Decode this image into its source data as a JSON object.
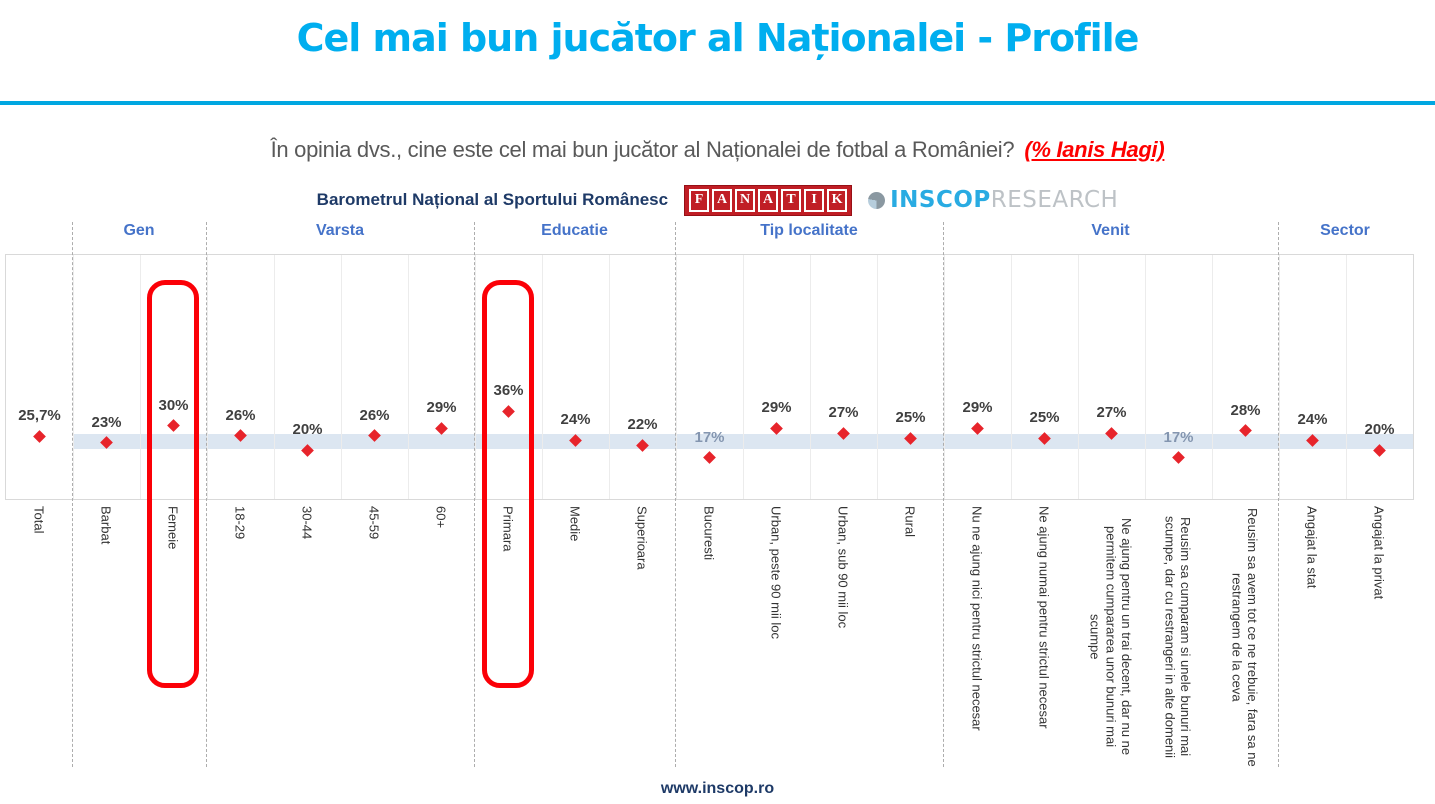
{
  "page": {
    "title": "Cel mai bun jucător al Naționalei - Profile",
    "question": "În opinia dvs., cine este cel mai bun jucător al Naționalei de fotbal a României?",
    "question_highlight": "(% Ianis Hagi)",
    "footer": "www.inscop.ro"
  },
  "brand": {
    "barometer": "Barometrul Național al Sportului Românesc",
    "fanatik": "FANATIK",
    "inscop_name": "INSCOP",
    "inscop_suffix": "RESEARCH"
  },
  "colors": {
    "title_cyan": "#00AEEF",
    "rule_blue": "#00A7E1",
    "highlight_red": "#FE0000",
    "marker_red": "#E7242B",
    "group_header_blue": "#4573C9",
    "reference_band": "#DCE6F1",
    "navy": "#1E3A67",
    "value_label": "#404040",
    "muted_value_label": "#8496B0"
  },
  "chart_data": {
    "type": "scatter",
    "unit": "%",
    "ylim": [
      0,
      100
    ],
    "grid": "column-separators",
    "reference_band": {
      "from": 20.5,
      "to": 26.5,
      "note": "light blue band at total level, starts after Total column"
    },
    "highlighted_categories": [
      "Femeie",
      "Primara"
    ],
    "groups": [
      {
        "label": "",
        "items": [
          {
            "label": "Total",
            "value": 25.7,
            "value_label": "25,7%",
            "muted": false,
            "highlighted": false
          }
        ]
      },
      {
        "label": "Gen",
        "items": [
          {
            "label": "Barbat",
            "value": 23,
            "value_label": "23%",
            "muted": false,
            "highlighted": false
          },
          {
            "label": "Femeie",
            "value": 30,
            "value_label": "30%",
            "muted": false,
            "highlighted": true
          }
        ]
      },
      {
        "label": "Varsta",
        "items": [
          {
            "label": "18-29",
            "value": 26,
            "value_label": "26%",
            "muted": false,
            "highlighted": false
          },
          {
            "label": "30-44",
            "value": 20,
            "value_label": "20%",
            "muted": false,
            "highlighted": false
          },
          {
            "label": "45-59",
            "value": 26,
            "value_label": "26%",
            "muted": false,
            "highlighted": false
          },
          {
            "label": "60+",
            "value": 29,
            "value_label": "29%",
            "muted": false,
            "highlighted": false
          }
        ]
      },
      {
        "label": "Educatie",
        "items": [
          {
            "label": "Primara",
            "value": 36,
            "value_label": "36%",
            "muted": false,
            "highlighted": true
          },
          {
            "label": "Medie",
            "value": 24,
            "value_label": "24%",
            "muted": false,
            "highlighted": false
          },
          {
            "label": "Superioara",
            "value": 22,
            "value_label": "22%",
            "muted": false,
            "highlighted": false
          }
        ]
      },
      {
        "label": "Tip localitate",
        "items": [
          {
            "label": "Bucuresti",
            "value": 17,
            "value_label": "17%",
            "muted": true,
            "highlighted": false
          },
          {
            "label": "Urban, peste 90 mii loc",
            "value": 29,
            "value_label": "29%",
            "muted": false,
            "highlighted": false
          },
          {
            "label": "Urban, sub 90 mii loc",
            "value": 27,
            "value_label": "27%",
            "muted": false,
            "highlighted": false
          },
          {
            "label": "Rural",
            "value": 25,
            "value_label": "25%",
            "muted": false,
            "highlighted": false
          }
        ]
      },
      {
        "label": "Venit",
        "items": [
          {
            "label": "Nu ne ajung nici pentru strictul necesar",
            "value": 29,
            "value_label": "29%",
            "muted": false,
            "highlighted": false
          },
          {
            "label": "Ne ajung numai pentru strictul necesar",
            "value": 25,
            "value_label": "25%",
            "muted": false,
            "highlighted": false
          },
          {
            "label": "Ne ajung pentru un trai decent, dar nu ne permitem cumpararea unor bunuri mai scumpe",
            "value": 27,
            "value_label": "27%",
            "muted": false,
            "highlighted": false
          },
          {
            "label": "Reusim sa cumparam si unele bunuri mai scumpe, dar cu restrangeri in alte domenii",
            "value": 17,
            "value_label": "17%",
            "muted": true,
            "highlighted": false
          },
          {
            "label": "Reusim sa avem tot ce ne trebuie, fara sa ne restrangem de la ceva",
            "value": 28,
            "value_label": "28%",
            "muted": false,
            "highlighted": false
          }
        ]
      },
      {
        "label": "Sector",
        "items": [
          {
            "label": "Angajat la stat",
            "value": 24,
            "value_label": "24%",
            "muted": false,
            "highlighted": false
          },
          {
            "label": "Angajat la privat",
            "value": 20,
            "value_label": "20%",
            "muted": false,
            "highlighted": false
          }
        ]
      }
    ]
  }
}
